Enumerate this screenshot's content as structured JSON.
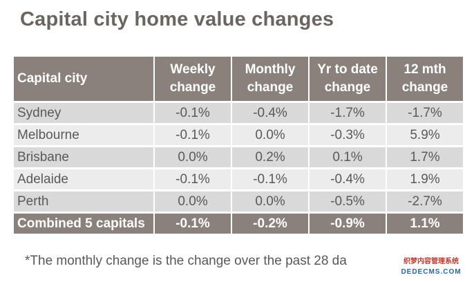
{
  "title": "Capital city home value changes",
  "table": {
    "headers": {
      "city": "Capital city",
      "weekly": [
        "Weekly",
        "change"
      ],
      "monthly": [
        "Monthly",
        "change"
      ],
      "ytd": [
        "Yr to date",
        "change"
      ],
      "mth12": [
        "12 mth",
        "change"
      ]
    },
    "rows": [
      {
        "city": "Sydney",
        "weekly": "-0.1%",
        "monthly": "-0.4%",
        "ytd": "-1.7%",
        "mth12": "-1.7%"
      },
      {
        "city": "Melbourne",
        "weekly": "-0.1%",
        "monthly": "0.0%",
        "ytd": "-0.3%",
        "mth12": "5.9%"
      },
      {
        "city": "Brisbane",
        "weekly": "0.0%",
        "monthly": "0.2%",
        "ytd": "0.1%",
        "mth12": "1.7%"
      },
      {
        "city": "Adelaide",
        "weekly": "-0.1%",
        "monthly": "-0.1%",
        "ytd": "-0.4%",
        "mth12": "1.9%"
      },
      {
        "city": "Perth",
        "weekly": "0.0%",
        "monthly": "0.0%",
        "ytd": "-0.5%",
        "mth12": "-2.7%"
      }
    ],
    "total": {
      "city": "Combined 5 capitals",
      "weekly": "-0.1%",
      "monthly": "-0.2%",
      "ytd": "-0.9%",
      "mth12": "1.1%"
    }
  },
  "footnote": "*The monthly change is the change over the past 28 da",
  "watermark": {
    "line1": "织梦内容管理系统",
    "line2": "DEDECMS.COM"
  },
  "colors": {
    "header_bg": "#8a817c",
    "row_dark": "#d9d9d9",
    "row_light": "#ececec",
    "title": "#6b6561",
    "text": "#595959"
  }
}
